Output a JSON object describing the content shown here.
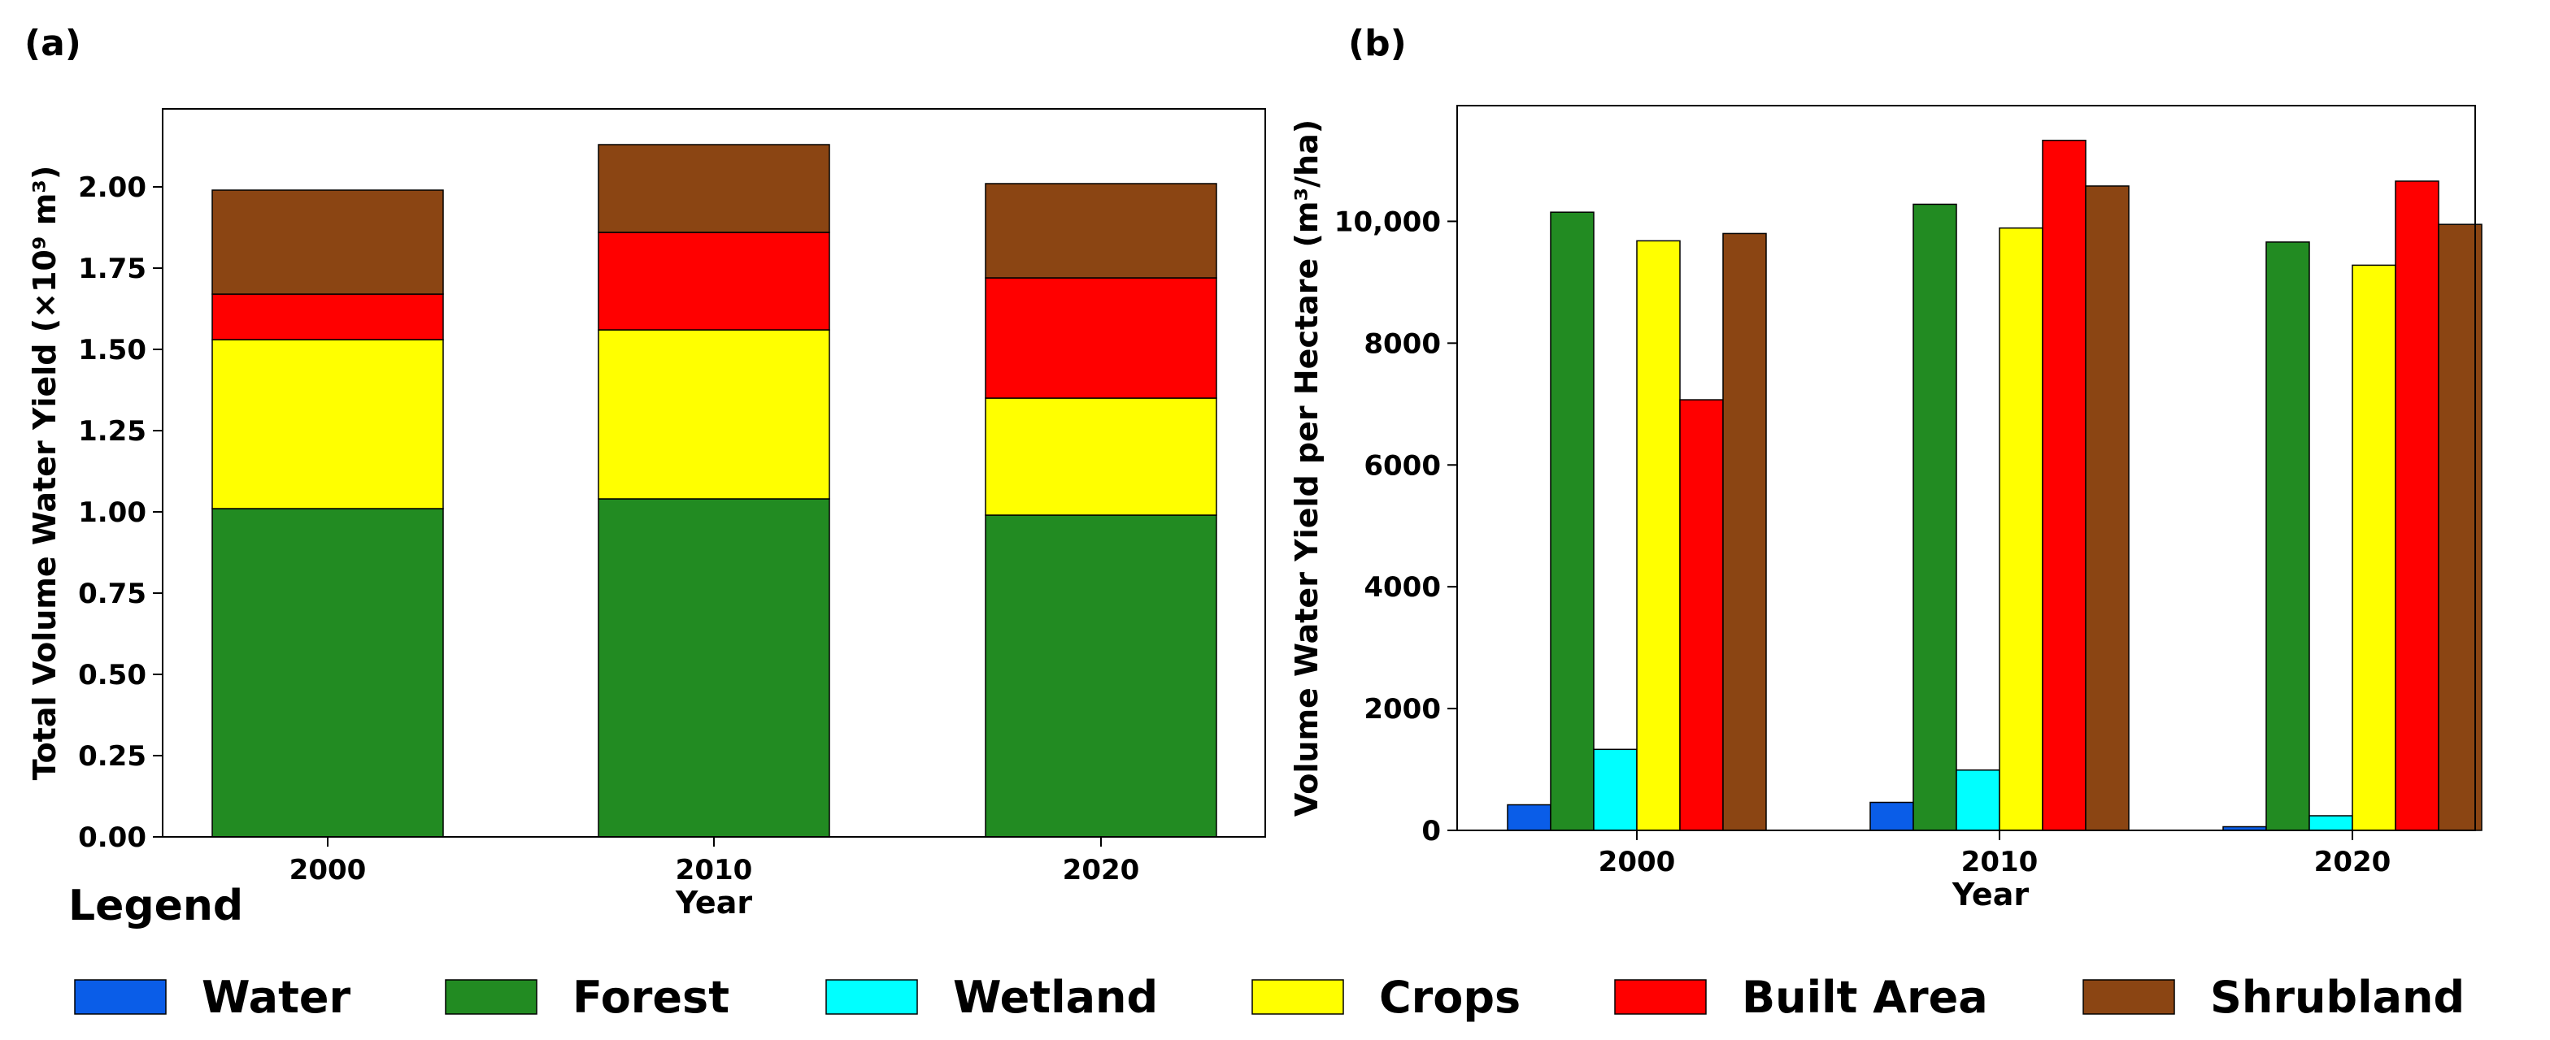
{
  "chart_data": [
    {
      "panel": "(a)",
      "type": "bar",
      "stacked": true,
      "categories": [
        "2000",
        "2010",
        "2020"
      ],
      "series": [
        {
          "name": "Forest",
          "values": [
            1.01,
            1.04,
            0.99
          ]
        },
        {
          "name": "Crops",
          "values": [
            0.52,
            0.52,
            0.36
          ]
        },
        {
          "name": "Built Area",
          "values": [
            0.14,
            0.3,
            0.37
          ]
        },
        {
          "name": "Shrubland",
          "values": [
            0.32,
            0.27,
            0.29
          ]
        }
      ],
      "xlabel": "Year",
      "ylabel": "Total Volume Water Yield (×10⁹ m³)",
      "ylim": [
        0,
        2.24
      ],
      "yticks": [
        "0.00",
        "0.25",
        "0.50",
        "0.75",
        "1.00",
        "1.25",
        "1.50",
        "1.75",
        "2.00"
      ]
    },
    {
      "panel": "(b)",
      "type": "bar",
      "stacked": false,
      "categories": [
        "2000",
        "2010",
        "2020"
      ],
      "series": [
        {
          "name": "Water",
          "values": [
            420,
            460,
            60
          ]
        },
        {
          "name": "Forest",
          "values": [
            10150,
            10280,
            9660
          ]
        },
        {
          "name": "Wetland",
          "values": [
            1330,
            990,
            240
          ]
        },
        {
          "name": "Crops",
          "values": [
            9680,
            9890,
            9280
          ]
        },
        {
          "name": "Built Area",
          "values": [
            7070,
            11330,
            10660
          ]
        },
        {
          "name": "Shrubland",
          "values": [
            9800,
            10580,
            9950
          ]
        }
      ],
      "xlabel": "Year",
      "ylabel": "Volume Water Yield per Hectare (m³/ha)",
      "ylim": [
        0,
        11900
      ],
      "yticks": [
        "0",
        "2000",
        "4000",
        "6000",
        "8000",
        "10,000"
      ]
    }
  ],
  "legend": {
    "title": "Legend",
    "items": [
      {
        "name": "Water",
        "color": "#0a5de8"
      },
      {
        "name": "Forest",
        "color": "#228b22"
      },
      {
        "name": "Wetland",
        "color": "#00ffff"
      },
      {
        "name": "Crops",
        "color": "#ffff00"
      },
      {
        "name": "Built Area",
        "color": "#ff0000"
      },
      {
        "name": "Shrubland",
        "color": "#8b4513"
      }
    ]
  }
}
